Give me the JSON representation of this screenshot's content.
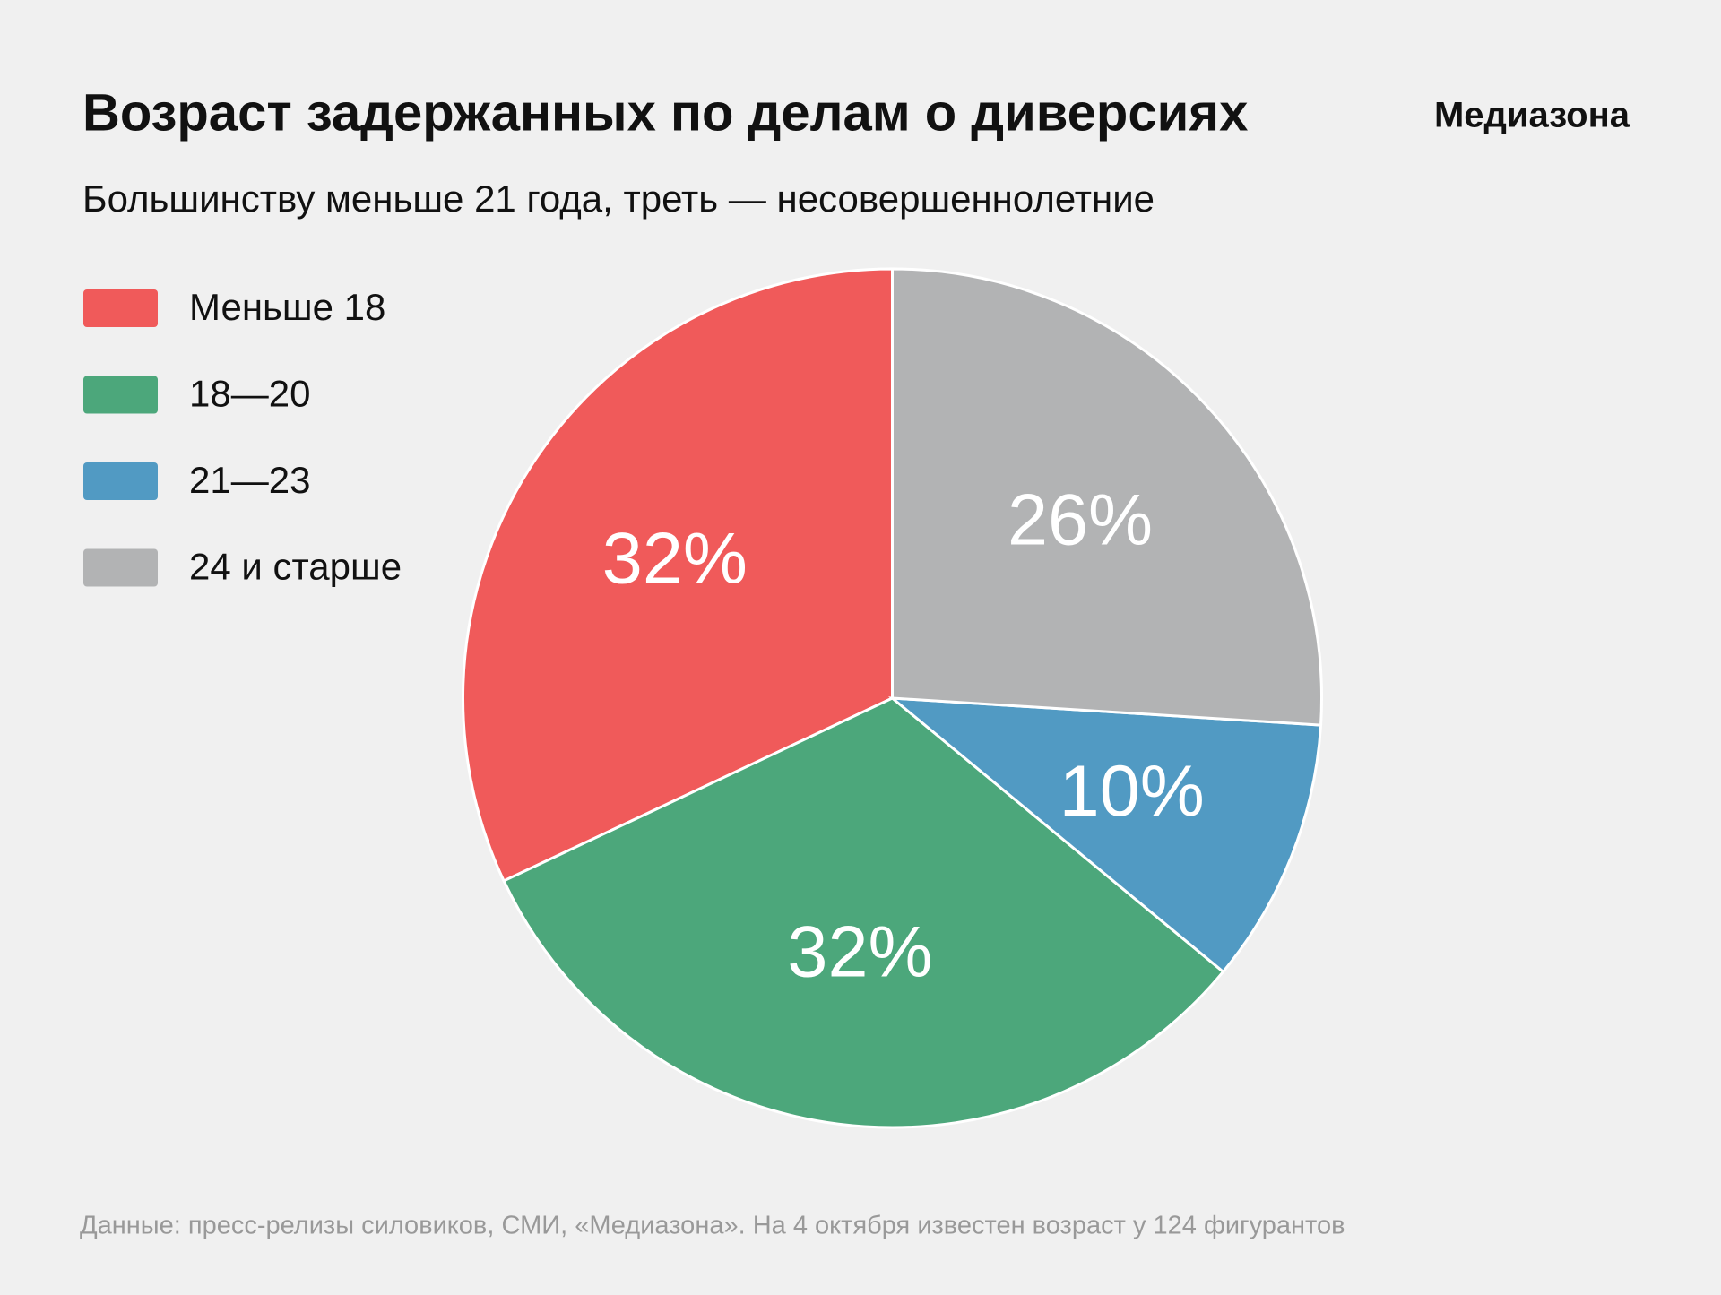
{
  "chart_data": {
    "type": "pie",
    "title": "Возраст задержанных по делам о диверсиях",
    "subtitle": "Большинству меньше 21 года, треть — несовершеннолетние",
    "brand": "Медиазона",
    "source": "Данные: пресс-релизы силовиков, СМИ, «Медиазона». На 4 октября известен возраст у 124 фигурантов",
    "categories": [
      "Меньше 18",
      "18—20",
      "21—23",
      "24 и старше"
    ],
    "values": [
      32,
      32,
      10,
      26
    ],
    "value_labels": [
      "32%",
      "32%",
      "10%",
      "26%"
    ],
    "colors": [
      "#f05a5a",
      "#4ca77b",
      "#519ac3",
      "#b2b3b4"
    ],
    "legend": "left"
  }
}
